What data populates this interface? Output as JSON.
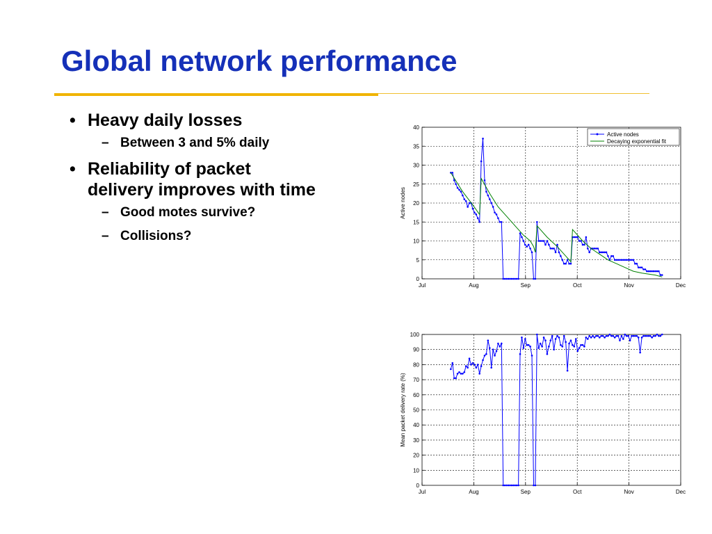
{
  "slide": {
    "title": "Global network performance",
    "bullets": [
      {
        "text": "Heavy daily losses",
        "sub": [
          "Between 3 and 5% daily"
        ]
      },
      {
        "text": "Reliability of packet delivery improves with time",
        "sub": [
          "Good motes survive?",
          "Collisions?"
        ]
      }
    ]
  },
  "colors": {
    "title": "#1530b8",
    "accent": "#f0b400",
    "series_blue": "#0000ff",
    "series_green": "#008000"
  },
  "chart_data": [
    {
      "type": "line",
      "x_ticks": [
        "Jul",
        "Aug",
        "Sep",
        "Oct",
        "Nov",
        "Dec"
      ],
      "xlim": [
        0,
        153
      ],
      "ylim": [
        0,
        40
      ],
      "y_ticks": [
        0,
        5,
        10,
        15,
        20,
        25,
        30,
        35,
        40
      ],
      "ylabel": "Active nodes",
      "grid": true,
      "legend": "top-right",
      "series": [
        {
          "name": "Active nodes",
          "color": "#0000ff",
          "marker": true,
          "points": [
            [
              17,
              28
            ],
            [
              18,
              28
            ],
            [
              19,
              26
            ],
            [
              20,
              25
            ],
            [
              21,
              24
            ],
            [
              22,
              23.5
            ],
            [
              23,
              23
            ],
            [
              24,
              22
            ],
            [
              25,
              21
            ],
            [
              26,
              20.5
            ],
            [
              27,
              19
            ],
            [
              28,
              20
            ],
            [
              29,
              20
            ],
            [
              30,
              18.5
            ],
            [
              31,
              17.5
            ],
            [
              32,
              17
            ],
            [
              33,
              16
            ],
            [
              34,
              15
            ],
            [
              35,
              31
            ],
            [
              36,
              37
            ],
            [
              37,
              26
            ],
            [
              38,
              23
            ],
            [
              39,
              22
            ],
            [
              40,
              21
            ],
            [
              41,
              20
            ],
            [
              42,
              19
            ],
            [
              43,
              17.5
            ],
            [
              44,
              17
            ],
            [
              45,
              16
            ],
            [
              46,
              15
            ],
            [
              47,
              15
            ],
            [
              48,
              0
            ],
            [
              49,
              0
            ],
            [
              50,
              0
            ],
            [
              51,
              0
            ],
            [
              52,
              0
            ],
            [
              53,
              0
            ],
            [
              54,
              0
            ],
            [
              55,
              0
            ],
            [
              56,
              0
            ],
            [
              57,
              0
            ],
            [
              58,
              12
            ],
            [
              59,
              11
            ],
            [
              60,
              10
            ],
            [
              61,
              9
            ],
            [
              62,
              8.5
            ],
            [
              63,
              9
            ],
            [
              64,
              8
            ],
            [
              65,
              7
            ],
            [
              66,
              0
            ],
            [
              67,
              0
            ],
            [
              68,
              15
            ],
            [
              69,
              10
            ],
            [
              70,
              10
            ],
            [
              71,
              10
            ],
            [
              72,
              10
            ],
            [
              73,
              9
            ],
            [
              74,
              10
            ],
            [
              75,
              9
            ],
            [
              76,
              8
            ],
            [
              77,
              8
            ],
            [
              78,
              8
            ],
            [
              79,
              7
            ],
            [
              80,
              9
            ],
            [
              81,
              7
            ],
            [
              82,
              6
            ],
            [
              83,
              5
            ],
            [
              84,
              4
            ],
            [
              85,
              4
            ],
            [
              86,
              5
            ],
            [
              87,
              4
            ],
            [
              88,
              4
            ],
            [
              89,
              11
            ],
            [
              90,
              11
            ],
            [
              91,
              11
            ],
            [
              92,
              11
            ],
            [
              93,
              10
            ],
            [
              94,
              10
            ],
            [
              95,
              9
            ],
            [
              96,
              9
            ],
            [
              97,
              11
            ],
            [
              98,
              8
            ],
            [
              99,
              7
            ],
            [
              100,
              8
            ],
            [
              101,
              8
            ],
            [
              102,
              8
            ],
            [
              103,
              8
            ],
            [
              104,
              8
            ],
            [
              105,
              7
            ],
            [
              106,
              7
            ],
            [
              107,
              7
            ],
            [
              108,
              7
            ],
            [
              109,
              7
            ],
            [
              110,
              6
            ],
            [
              111,
              5
            ],
            [
              112,
              6
            ],
            [
              113,
              6
            ],
            [
              114,
              5
            ],
            [
              115,
              5
            ],
            [
              116,
              5
            ],
            [
              117,
              5
            ],
            [
              118,
              5
            ],
            [
              119,
              5
            ],
            [
              120,
              5
            ],
            [
              121,
              5
            ],
            [
              122,
              5
            ],
            [
              123,
              5
            ],
            [
              124,
              5
            ],
            [
              125,
              5
            ],
            [
              126,
              4
            ],
            [
              127,
              4
            ],
            [
              128,
              3
            ],
            [
              129,
              3
            ],
            [
              130,
              3
            ],
            [
              131,
              2.5
            ],
            [
              132,
              2.5
            ],
            [
              133,
              2
            ],
            [
              134,
              2
            ],
            [
              135,
              2
            ],
            [
              136,
              2
            ],
            [
              137,
              2
            ],
            [
              138,
              2
            ],
            [
              139,
              2
            ],
            [
              140,
              2
            ],
            [
              141,
              1
            ],
            [
              142,
              1
            ]
          ]
        },
        {
          "name": "Decaying exponential fit",
          "color": "#008000",
          "marker": false,
          "points": [
            [
              17,
              28
            ],
            [
              24,
              23
            ],
            [
              30,
              19.5
            ],
            [
              34,
              17
            ],
            [
              35,
              26.5
            ],
            [
              40,
              22.5
            ],
            [
              45,
              19
            ],
            [
              50,
              16.5
            ],
            [
              55,
              14
            ],
            [
              60,
              11.5
            ],
            [
              64,
              10
            ],
            [
              66,
              8.5
            ],
            [
              67,
              7
            ],
            [
              68,
              14
            ],
            [
              74,
              11
            ],
            [
              80,
              8.5
            ],
            [
              85,
              6
            ],
            [
              88,
              4.5
            ],
            [
              89,
              13
            ],
            [
              95,
              10
            ],
            [
              100,
              8
            ],
            [
              105,
              6.5
            ],
            [
              110,
              5
            ],
            [
              115,
              4
            ],
            [
              120,
              3
            ],
            [
              125,
              2
            ],
            [
              130,
              1.5
            ],
            [
              138,
              1
            ],
            [
              142,
              0.5
            ]
          ]
        }
      ]
    },
    {
      "type": "line",
      "x_ticks": [
        "Jul",
        "Aug",
        "Sep",
        "Oct",
        "Nov",
        "Dec"
      ],
      "xlim": [
        0,
        153
      ],
      "ylim": [
        0,
        100
      ],
      "y_ticks": [
        0,
        10,
        20,
        30,
        40,
        50,
        60,
        70,
        80,
        90,
        100
      ],
      "ylabel": "Mean packet delivery rate (%)",
      "grid": true,
      "series": [
        {
          "color": "#0000ff",
          "marker": true,
          "points": [
            [
              17,
              77
            ],
            [
              18,
              81
            ],
            [
              19,
              71
            ],
            [
              20,
              71
            ],
            [
              21,
              74
            ],
            [
              22,
              75
            ],
            [
              23,
              74
            ],
            [
              24,
              74
            ],
            [
              25,
              75
            ],
            [
              26,
              79
            ],
            [
              27,
              78
            ],
            [
              28,
              84
            ],
            [
              29,
              80
            ],
            [
              30,
              81
            ],
            [
              31,
              80
            ],
            [
              32,
              78
            ],
            [
              33,
              80
            ],
            [
              34,
              74
            ],
            [
              35,
              79
            ],
            [
              36,
              83
            ],
            [
              37,
              86
            ],
            [
              38,
              87
            ],
            [
              39,
              96
            ],
            [
              40,
              91
            ],
            [
              41,
              78
            ],
            [
              42,
              90
            ],
            [
              43,
              86
            ],
            [
              44,
              89
            ],
            [
              45,
              94
            ],
            [
              46,
              92
            ],
            [
              47,
              94
            ],
            [
              48,
              0
            ],
            [
              49,
              0
            ],
            [
              50,
              0
            ],
            [
              51,
              0
            ],
            [
              52,
              0
            ],
            [
              53,
              0
            ],
            [
              54,
              0
            ],
            [
              55,
              0
            ],
            [
              56,
              0
            ],
            [
              57,
              0
            ],
            [
              58,
              87
            ],
            [
              59,
              98
            ],
            [
              60,
              91
            ],
            [
              61,
              97
            ],
            [
              62,
              93
            ],
            [
              63,
              93
            ],
            [
              64,
              92
            ],
            [
              65,
              86
            ],
            [
              66,
              0
            ],
            [
              67,
              0
            ],
            [
              68,
              100
            ],
            [
              69,
              91
            ],
            [
              70,
              94
            ],
            [
              71,
              92
            ],
            [
              72,
              98
            ],
            [
              73,
              96
            ],
            [
              74,
              87
            ],
            [
              75,
              92
            ],
            [
              76,
              96
            ],
            [
              77,
              99
            ],
            [
              78,
              90
            ],
            [
              79,
              97
            ],
            [
              80,
              99
            ],
            [
              81,
              98
            ],
            [
              82,
              93
            ],
            [
              83,
              92
            ],
            [
              84,
              99
            ],
            [
              85,
              95
            ],
            [
              86,
              76
            ],
            [
              87,
              94
            ],
            [
              88,
              96
            ],
            [
              89,
              93
            ],
            [
              90,
              92
            ],
            [
              91,
              97
            ],
            [
              92,
              89
            ],
            [
              93,
              91
            ],
            [
              94,
              93
            ],
            [
              95,
              93
            ],
            [
              96,
              92
            ],
            [
              97,
              98
            ],
            [
              98,
              97
            ],
            [
              99,
              99
            ],
            [
              100,
              98
            ],
            [
              101,
              99
            ],
            [
              102,
              98
            ],
            [
              103,
              99
            ],
            [
              104,
              99
            ],
            [
              105,
              98
            ],
            [
              106,
              99
            ],
            [
              107,
              99
            ],
            [
              108,
              98
            ],
            [
              109,
              99
            ],
            [
              110,
              99
            ],
            [
              111,
              100
            ],
            [
              112,
              99
            ],
            [
              113,
              99
            ],
            [
              114,
              98
            ],
            [
              115,
              99
            ],
            [
              116,
              99
            ],
            [
              117,
              96
            ],
            [
              118,
              99
            ],
            [
              119,
              97
            ],
            [
              120,
              100
            ],
            [
              121,
              99
            ],
            [
              122,
              99
            ],
            [
              123,
              96
            ],
            [
              124,
              99
            ],
            [
              125,
              99
            ],
            [
              126,
              99
            ],
            [
              127,
              99
            ],
            [
              128,
              98
            ],
            [
              129,
              88
            ],
            [
              130,
              98
            ],
            [
              131,
              99
            ],
            [
              132,
              99
            ],
            [
              133,
              99
            ],
            [
              134,
              99
            ],
            [
              135,
              99
            ],
            [
              136,
              98
            ],
            [
              137,
              99
            ],
            [
              138,
              99
            ],
            [
              139,
              100
            ],
            [
              140,
              99
            ],
            [
              141,
              99
            ],
            [
              142,
              100
            ]
          ]
        }
      ]
    }
  ]
}
